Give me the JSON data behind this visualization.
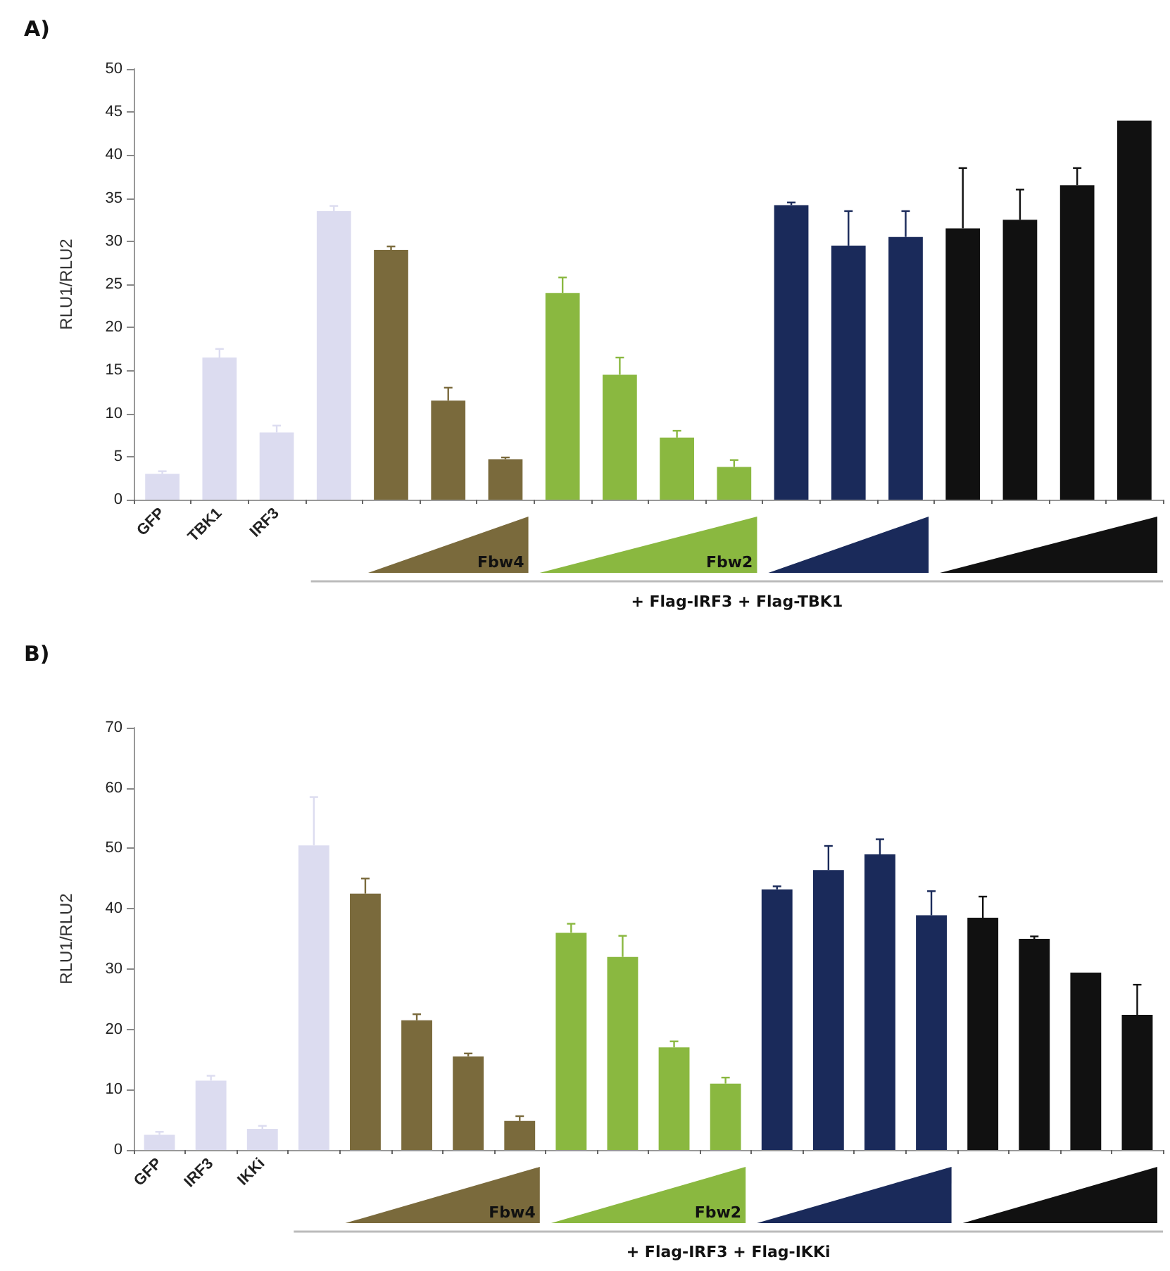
{
  "chart_data": [
    {
      "type": "bar",
      "title": "A)",
      "ylabel": "RLU1/RLU2",
      "xlabel": "+ Flag-IRF3 + Flag-TBK1",
      "categories": [
        "GFP",
        "TBK1",
        "IRF3",
        null,
        null,
        null,
        null,
        null,
        null,
        null,
        null,
        null,
        null,
        null,
        null,
        null,
        null,
        null
      ],
      "values": [
        3,
        16.5,
        7.8,
        33.5,
        29,
        11.5,
        4.7,
        24,
        14.5,
        7.2,
        3.8,
        34.2,
        29.5,
        30.5,
        31.5,
        32.5,
        36.5,
        44
      ],
      "errors": [
        0.3,
        1,
        0.8,
        0.6,
        0.4,
        1.5,
        0.2,
        1.8,
        2,
        0.8,
        0.8,
        0.3,
        4,
        3,
        7,
        3.5,
        2,
        null
      ],
      "colors": [
        "#dcdcf0",
        "#dcdcf0",
        "#dcdcf0",
        "#dcdcf0",
        "#7a6a3c",
        "#7a6a3c",
        "#7a6a3c",
        "#8ab840",
        "#8ab840",
        "#8ab840",
        "#8ab840",
        "#1a2a5a",
        "#1a2a5a",
        "#1a2a5a",
        "#111111",
        "#111111",
        "#111111",
        "#111111"
      ],
      "ylim": [
        0,
        50
      ],
      "yticks": [
        0,
        5,
        10,
        15,
        20,
        25,
        30,
        35,
        40,
        45,
        50
      ],
      "grid": false,
      "annotations": [
        "Fbw4",
        "Fbw2"
      ]
    },
    {
      "type": "bar",
      "title": "B)",
      "ylabel": "RLU1/RLU2",
      "xlabel": "+ Flag-IRF3 + Flag-IKKi",
      "categories": [
        "GFP",
        "IRF3",
        "IKKi",
        null,
        null,
        null,
        null,
        null,
        null,
        null,
        null,
        null,
        null,
        null,
        null,
        null,
        null,
        null,
        null,
        null
      ],
      "values": [
        2.5,
        11.5,
        3.5,
        50.5,
        42.5,
        21.5,
        15.5,
        4.8,
        36,
        32,
        17,
        11,
        43.2,
        46.4,
        49,
        38.9,
        38.5,
        35,
        29.4,
        22.4
      ],
      "errors": [
        0.5,
        0.8,
        0.5,
        8,
        2.5,
        1,
        0.5,
        0.8,
        1.5,
        3.5,
        1,
        1,
        0.5,
        4,
        2.5,
        4,
        3.5,
        0.4,
        null,
        5
      ],
      "colors": [
        "#dcdcf0",
        "#dcdcf0",
        "#dcdcf0",
        "#dcdcf0",
        "#7a6a3c",
        "#7a6a3c",
        "#7a6a3c",
        "#7a6a3c",
        "#8ab840",
        "#8ab840",
        "#8ab840",
        "#8ab840",
        "#1a2a5a",
        "#1a2a5a",
        "#1a2a5a",
        "#1a2a5a",
        "#111111",
        "#111111",
        "#111111",
        "#111111"
      ],
      "ylim": [
        0,
        70
      ],
      "yticks": [
        0,
        10,
        20,
        30,
        40,
        50,
        60,
        70
      ],
      "grid": false,
      "annotations": [
        "Fbw4",
        "Fbw2"
      ]
    }
  ]
}
